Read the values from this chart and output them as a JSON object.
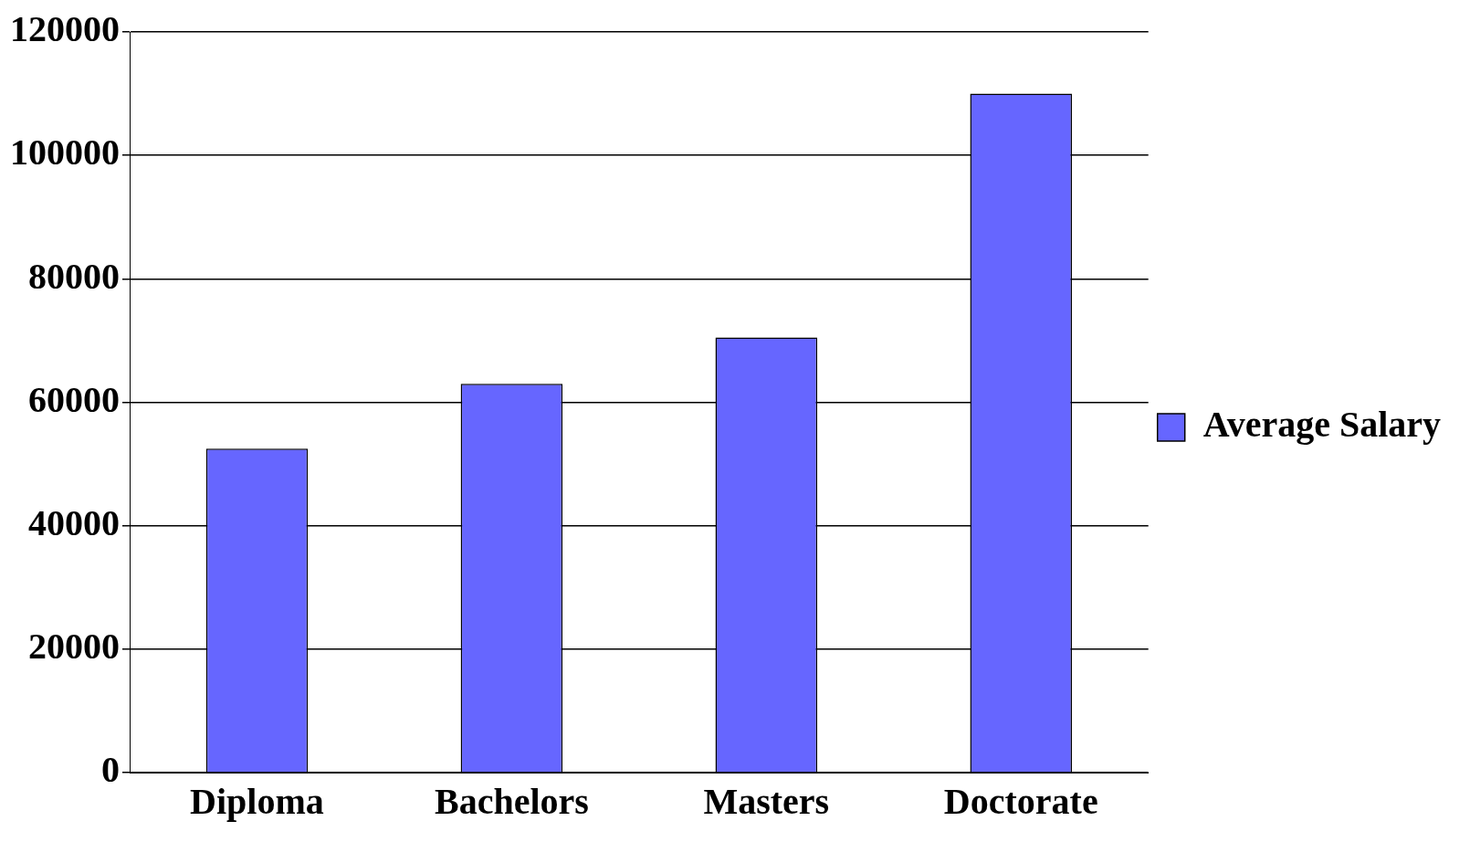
{
  "chart_data": {
    "type": "bar",
    "categories": [
      "Diploma",
      "Bachelors",
      "Masters",
      "Doctorate"
    ],
    "series": [
      {
        "name": "Average Salary",
        "color": "#6666ff",
        "values": [
          52500,
          63000,
          70500,
          110000
        ]
      }
    ],
    "ylim": [
      0,
      120000
    ],
    "yticks": [
      0,
      20000,
      40000,
      60000,
      80000,
      100000,
      120000
    ],
    "grid": "y",
    "legend": "right"
  }
}
